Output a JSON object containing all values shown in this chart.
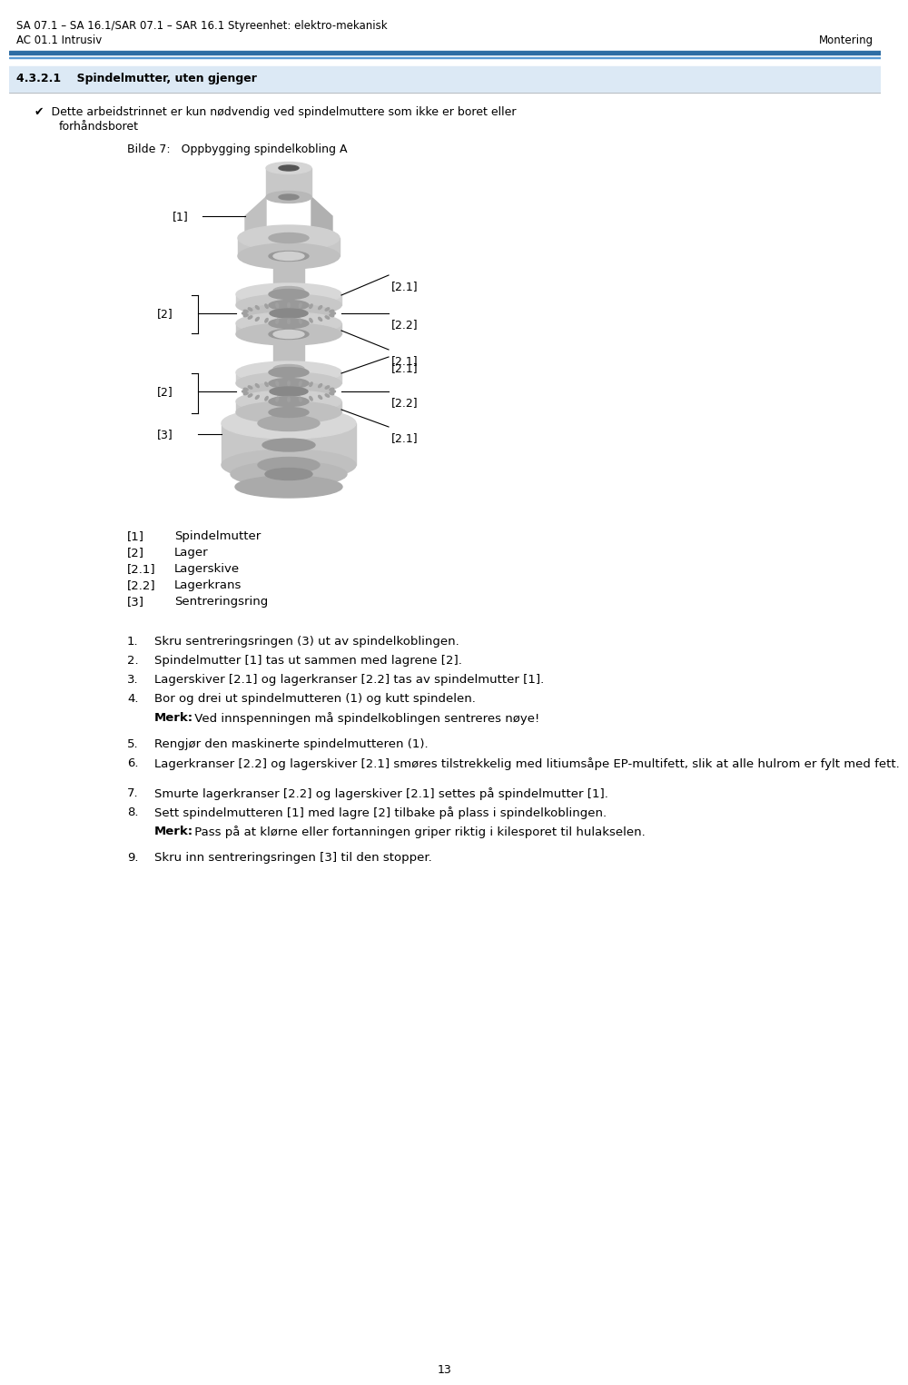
{
  "header_line1": "SA 07.1 – SA 16.1/SAR 07.1 – SAR 16.1 Styreenhet: elektro-mekanisk",
  "header_line2": "AC 01.1 Intrusiv",
  "header_right": "Montering",
  "header_bar_color1": "#2e6da4",
  "header_bar_color2": "#5b9bd5",
  "section_bg_color": "#dce9f5",
  "section_title": "4.3.2.1    Spindelmutter, uten gjenger",
  "checkmark_text1": "✔  Dette arbeidstrinnet er kun nødvendig ved spindelmuttere som ikke er boret eller",
  "checkmark_text2": "forhåndsboret",
  "figure_caption": "Bilde 7:   Oppbygging spindelkobling A",
  "legend_items": [
    {
      "label": "[1]",
      "desc": "Spindelmutter"
    },
    {
      "label": "[2]",
      "desc": "Lager"
    },
    {
      "label": "[2.1]",
      "desc": "Lagerskive"
    },
    {
      "label": "[2.2]",
      "desc": "Lagerkrans"
    },
    {
      "label": "[3]",
      "desc": "Sentreringsring"
    }
  ],
  "steps": [
    {
      "num": "1.",
      "text": "Skru sentreringsringen (3) ut av spindelkoblingen.",
      "wrap": false
    },
    {
      "num": "2.",
      "text": "Spindelmutter [1] tas ut sammen med lagrene [2].",
      "wrap": false
    },
    {
      "num": "3.",
      "text": "Lagerskiver [2.1] og lagerkranser [2.2] tas av spindelmutter [1].",
      "wrap": false
    },
    {
      "num": "4.",
      "text": "Bor og drei ut spindelmutteren (1) og kutt spindelen.",
      "wrap": false,
      "note_bold": "Merk:",
      "note_rest": " Ved innspenningen må spindelkoblingen sentreres nøye!",
      "note_wrap": false
    },
    {
      "num": "5.",
      "text": "Rengjør den maskinerte spindelmutteren (1).",
      "wrap": false
    },
    {
      "num": "6.",
      "text": "Lagerkranser [2.2] og lagerskiver [2.1] smøres tilstrekkelig med litiumsåpe EP-multifett, slik at alle hulrom er fylt med fett.",
      "wrap": true
    },
    {
      "num": "7.",
      "text": "Smurte lagerkranser [2.2] og lagerskiver [2.1] settes på spindelmutter [1].",
      "wrap": false
    },
    {
      "num": "8.",
      "text": "Sett spindelmutteren [1] med lagre [2] tilbake på plass i spindelkoblingen.",
      "wrap": false,
      "note_bold": "Merk:",
      "note_rest": " Pass på at klørne eller fortanningen griper riktig i kilesporet til hulakselen.",
      "note_wrap": false
    },
    {
      "num": "9.",
      "text": "Skru inn sentreringsringen [3] til den stopper.",
      "wrap": false
    }
  ],
  "page_number": "13",
  "bg_color": "#ffffff"
}
